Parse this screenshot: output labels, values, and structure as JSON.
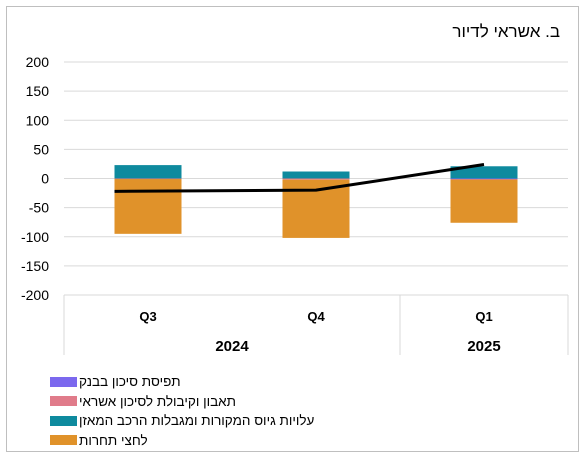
{
  "chart_data": {
    "type": "bar",
    "title": "ב. אשראי לדיור",
    "ylim": [
      -200,
      200
    ],
    "yticks": [
      200,
      150,
      100,
      50,
      0,
      -50,
      -100,
      -150,
      -200
    ],
    "categories": [
      "Q3",
      "Q4",
      "Q1"
    ],
    "year_groups": [
      {
        "label": "2024",
        "span": 2
      },
      {
        "label": "2025",
        "span": 1
      }
    ],
    "stacked": true,
    "series": [
      {
        "name": "תפיסת סיכון בבנק",
        "color": "#7b68ee",
        "values": [
          0,
          0,
          -1
        ]
      },
      {
        "name": "תאבון וקיבולת לסיכון אשראי",
        "color": "#e07b8a",
        "values": [
          -1,
          -2,
          -1
        ]
      },
      {
        "name": "עלויות גיוס המקורות ומגבלות הרכב המאזן",
        "color": "#0e8a9e",
        "values": [
          23,
          12,
          21
        ]
      },
      {
        "name": "לחצי תחרות",
        "color": "#e0922a",
        "values": [
          -94,
          -100,
          -74
        ]
      }
    ],
    "line": {
      "color": "#000000",
      "values": [
        -22,
        -20,
        24
      ]
    },
    "legend_position": "bottom-left",
    "grid": true
  }
}
